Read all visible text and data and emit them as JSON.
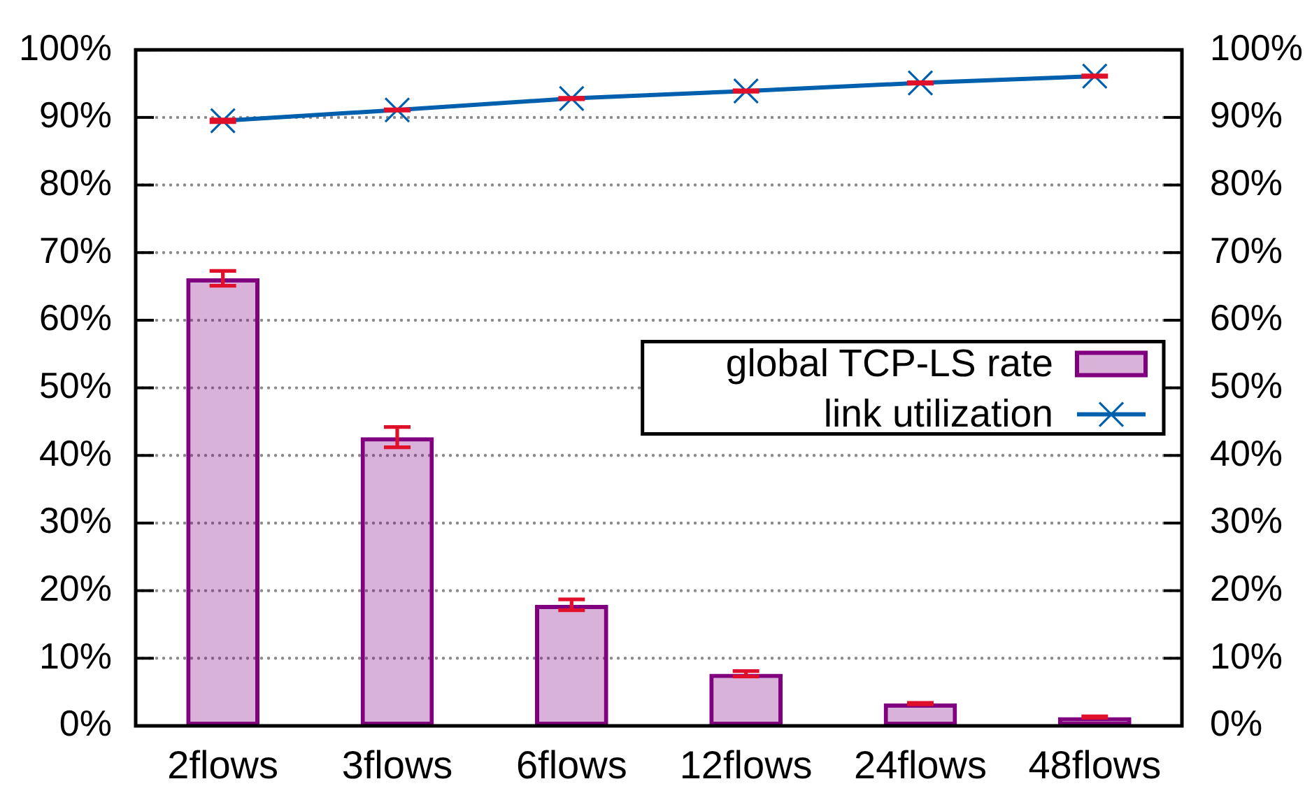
{
  "chart_data": {
    "type": "bar",
    "categories": [
      "2flows",
      "3flows",
      "6flows",
      "12flows",
      "24flows",
      "48flows"
    ],
    "series": [
      {
        "name": "global TCP-LS rate",
        "color": "#800080",
        "values": [
          66.2,
          42.7,
          17.9,
          7.7,
          3.3,
          1.3
        ],
        "errors": [
          1.1,
          1.5,
          0.8,
          0.4,
          0.1,
          0.1
        ]
      },
      {
        "name": "link utilization",
        "type": "line",
        "color": "#0060ad",
        "values": [
          89.5,
          91.1,
          92.8,
          93.9,
          95.1,
          96.1
        ],
        "errors": [
          0.2,
          0.1,
          0.1,
          0.1,
          0.1,
          0.1
        ]
      }
    ],
    "ylim": [
      0,
      100
    ],
    "yticks": [
      {
        "value": 0,
        "label": "0%"
      },
      {
        "value": 10,
        "label": "10%"
      },
      {
        "value": 20,
        "label": "20%"
      },
      {
        "value": 30,
        "label": "30%"
      },
      {
        "value": 40,
        "label": "40%"
      },
      {
        "value": 50,
        "label": "50%"
      },
      {
        "value": 60,
        "label": "60%"
      },
      {
        "value": 70,
        "label": "70%"
      },
      {
        "value": 80,
        "label": "80%"
      },
      {
        "value": 90,
        "label": "90%"
      },
      {
        "value": 100,
        "label": "100%"
      }
    ],
    "y2lim": [
      0,
      100
    ],
    "y2ticks": [
      {
        "value": 0,
        "label": "0%"
      },
      {
        "value": 10,
        "label": "10%"
      },
      {
        "value": 20,
        "label": "20%"
      },
      {
        "value": 30,
        "label": "30%"
      },
      {
        "value": 40,
        "label": "40%"
      },
      {
        "value": 50,
        "label": "50%"
      },
      {
        "value": 60,
        "label": "60%"
      },
      {
        "value": 70,
        "label": "70%"
      },
      {
        "value": 80,
        "label": "80%"
      },
      {
        "value": 90,
        "label": "90%"
      },
      {
        "value": 100,
        "label": "100%"
      }
    ],
    "grid": "y",
    "legend": "right",
    "marker": "cross",
    "line_style": "solid"
  }
}
